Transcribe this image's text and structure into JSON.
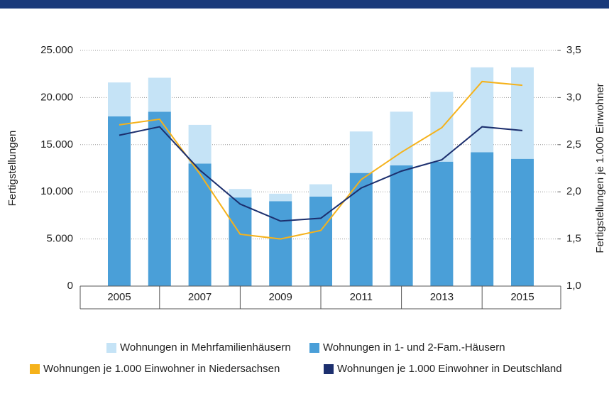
{
  "chart_data": {
    "type": "bar",
    "stacked": true,
    "categories": [
      "2005",
      null,
      "2007",
      null,
      "2009",
      null,
      "2011",
      null,
      "2013",
      null,
      "2015"
    ],
    "y_label": "Fertigstellungen",
    "y2_label": "Fertigstellungen je 1.000 Einwohner",
    "ylim": [
      0,
      25000
    ],
    "yticks": [
      0,
      {
        "value": 5000,
        "label": "5.000"
      },
      {
        "value": 10000,
        "label": "10.000"
      },
      {
        "value": 15000,
        "label": "15.000"
      },
      {
        "value": 20000,
        "label": "20.000"
      },
      {
        "value": 25000,
        "label": "25.000"
      }
    ],
    "y2lim": [
      1,
      3.5
    ],
    "y2ticks": [
      {
        "value": 1,
        "label": "1,0"
      },
      {
        "value": 1.5,
        "label": "1,5"
      },
      {
        "value": 2,
        "label": "2,0"
      },
      {
        "value": 2.5,
        "label": "2,5"
      },
      {
        "value": 3,
        "label": "3,0"
      },
      {
        "value": 3.5,
        "label": "3,5"
      }
    ],
    "grid": true,
    "series": [
      {
        "name": "Wohnungen in 1- und 2-Fam.-Häusern",
        "type": "bar",
        "color": "#4a9fd8",
        "values": [
          18000,
          18500,
          13000,
          9400,
          9000,
          9500,
          12000,
          12800,
          13200,
          14200,
          13500
        ]
      },
      {
        "name": "Wohnungen in Mehrfamilienhäusern",
        "type": "bar",
        "color": "#c5e3f6",
        "values": [
          3600,
          3600,
          4100,
          900,
          800,
          1300,
          4400,
          5700,
          7400,
          9000,
          9700
        ]
      },
      {
        "name": "Wohnungen je 1.000 Einwohner in Niedersachsen",
        "type": "line",
        "axis": "y2",
        "color": "#f5b21b",
        "values": [
          2.71,
          2.77,
          2.19,
          1.55,
          1.5,
          1.59,
          2.13,
          2.42,
          2.68,
          3.17,
          3.13
        ]
      },
      {
        "name": "Wohnungen je 1.000 Einwohner in Deutschland",
        "type": "line",
        "axis": "y2",
        "color": "#1c2f6e",
        "values": [
          2.6,
          2.69,
          2.23,
          1.87,
          1.69,
          1.72,
          2.04,
          2.22,
          2.34,
          2.69,
          2.65
        ]
      }
    ]
  }
}
